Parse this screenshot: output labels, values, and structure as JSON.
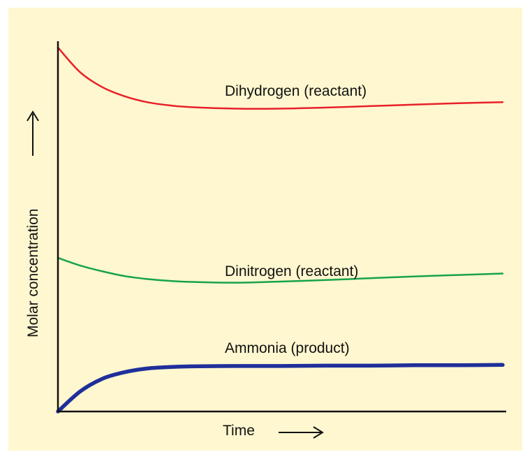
{
  "colors": {
    "background": "#fff7cf",
    "axis": "#111111",
    "dihydrogen": "#e8202a",
    "dinitrogen": "#16a34a",
    "ammonia": "#1f2f9a"
  },
  "chart_data": {
    "type": "line",
    "title": "",
    "xlabel": "Time",
    "ylabel": "Molar concentration",
    "xlim": [
      0,
      100
    ],
    "ylim": [
      0,
      100
    ],
    "grid": false,
    "legend": "none",
    "series": [
      {
        "name": "Dihydrogen (reactant)",
        "color": "#e8202a",
        "x": [
          0,
          5,
          10,
          15,
          20,
          25,
          30,
          40,
          50,
          60,
          70,
          80,
          90,
          100
        ],
        "y": [
          100,
          93.2,
          89.1,
          86.6,
          85.0,
          84.1,
          83.6,
          83.2,
          83.2,
          83.5,
          83.9,
          84.3,
          84.7,
          85.0
        ]
      },
      {
        "name": "Dinitrogen (reactant)",
        "color": "#16a34a",
        "x": [
          0,
          5,
          10,
          15,
          20,
          25,
          30,
          40,
          50,
          60,
          70,
          80,
          90,
          100
        ],
        "y": [
          42.2,
          40.1,
          38.5,
          37.2,
          36.4,
          35.9,
          35.6,
          35.4,
          35.7,
          36.1,
          36.6,
          37.1,
          37.5,
          37.9
        ]
      },
      {
        "name": "Ammonia (product)",
        "color": "#1f2f9a",
        "x": [
          0,
          5,
          10,
          15,
          20,
          25,
          30,
          40,
          50,
          60,
          70,
          80,
          90,
          100
        ],
        "y": [
          0,
          5.5,
          9.0,
          10.8,
          11.8,
          12.2,
          12.4,
          12.5,
          12.5,
          12.6,
          12.6,
          12.7,
          12.7,
          12.8
        ]
      }
    ]
  }
}
